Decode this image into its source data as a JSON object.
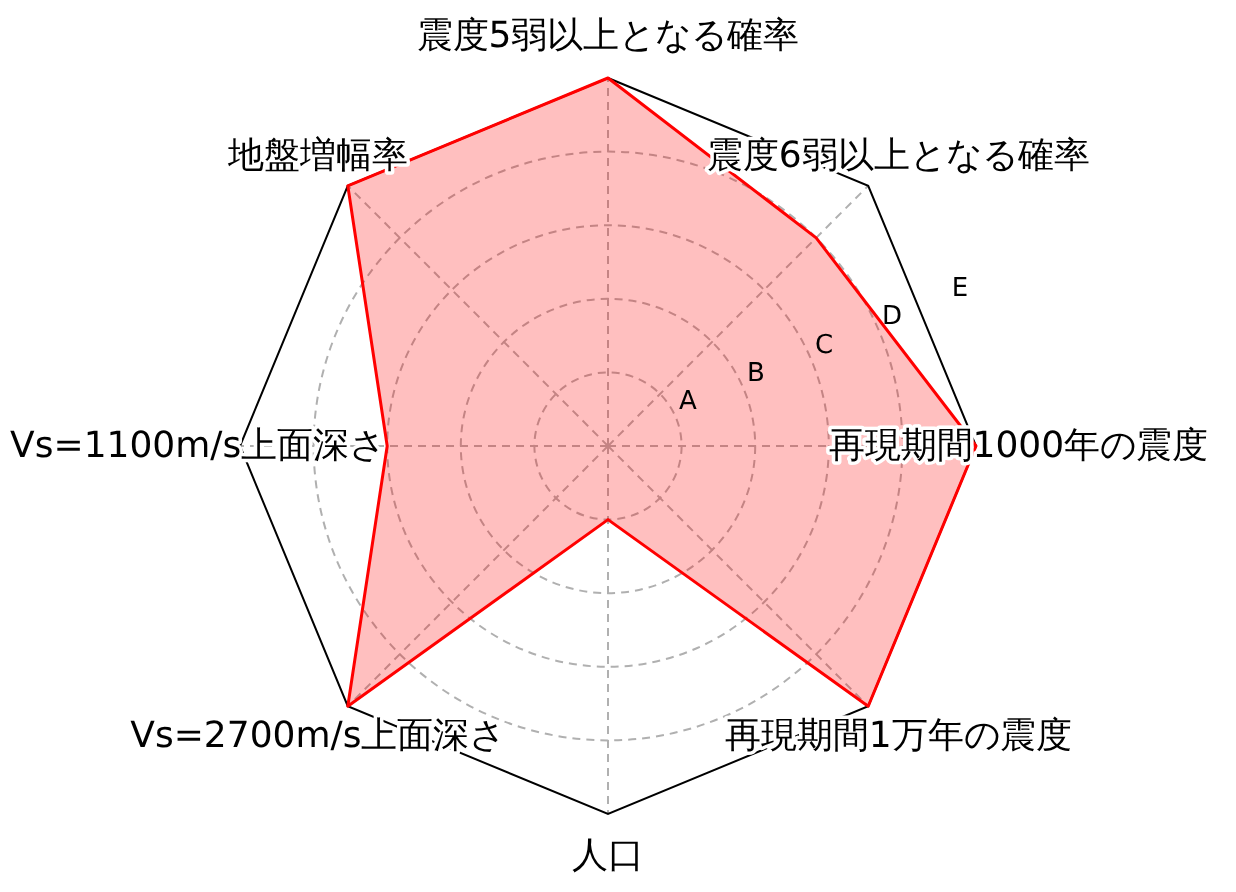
{
  "chart_data": {
    "type": "radar",
    "categories": [
      "震度5弱以上となる確率",
      "震度6弱以上となる確率",
      "再現期間1000年の震度",
      "再現期間1万年の震度",
      "人口",
      "Vs=2700m/s上面深さ",
      "Vs=1100m/s上面深さ",
      "地盤増幅率"
    ],
    "series": [
      {
        "color": "#ff0000",
        "values": [
          5,
          4,
          5,
          5,
          1,
          5,
          3,
          5
        ]
      }
    ],
    "ylim": [
      0,
      5
    ],
    "yticks": [
      {
        "value": 1,
        "label": "A"
      },
      {
        "value": 2,
        "label": "B"
      },
      {
        "value": 3,
        "label": "C"
      },
      {
        "value": 4,
        "label": "D"
      },
      {
        "value": 5,
        "label": "E"
      }
    ],
    "grid": true
  }
}
